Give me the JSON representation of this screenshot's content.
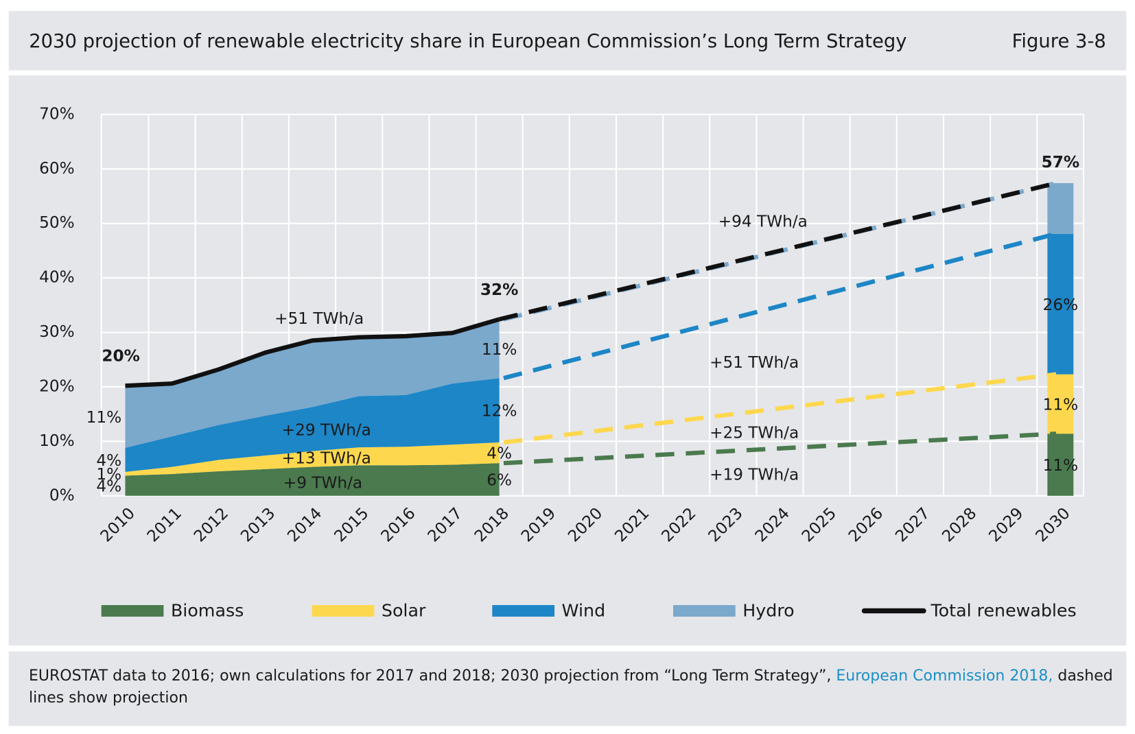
{
  "header": {
    "title": "2030 projection of renewable electricity share in European Commission’s Long Term Strategy",
    "figure": "Figure 3-8"
  },
  "chart_data": {
    "type": "area",
    "categories": [
      "2010",
      "2011",
      "2012",
      "2013",
      "2014",
      "2015",
      "2016",
      "2017",
      "2018",
      "2019",
      "2020",
      "2021",
      "2022",
      "2023",
      "2024",
      "2025",
      "2026",
      "2027",
      "2028",
      "2029",
      "2030"
    ],
    "ylim": [
      0,
      70
    ],
    "yticks": [
      {
        "value": 0,
        "label": "0%"
      },
      {
        "value": 10,
        "label": "10%"
      },
      {
        "value": 20,
        "label": "20%"
      },
      {
        "value": 30,
        "label": "30%"
      },
      {
        "value": 40,
        "label": "40%"
      },
      {
        "value": 50,
        "label": "50%"
      },
      {
        "value": 60,
        "label": "60%"
      },
      {
        "value": 70,
        "label": "70%"
      }
    ],
    "grid": true,
    "series": [
      {
        "name": "Biomass",
        "color": "#4a7a4e",
        "values": [
          3.7,
          4.0,
          4.5,
          4.9,
          5.3,
          5.6,
          5.6,
          5.7,
          6.0,
          null,
          null,
          null,
          null,
          null,
          null,
          null,
          null,
          null,
          null,
          null,
          11.4
        ],
        "value_labels": [
          "4%",
          null,
          null,
          null,
          null,
          null,
          null,
          null,
          "6%",
          null,
          null,
          null,
          null,
          null,
          null,
          null,
          null,
          null,
          null,
          null,
          "11%"
        ]
      },
      {
        "name": "Solar",
        "color": "#fdd84e",
        "values": [
          0.7,
          1.3,
          2.1,
          2.5,
          2.9,
          3.3,
          3.4,
          3.7,
          3.8,
          null,
          null,
          null,
          null,
          null,
          null,
          null,
          null,
          null,
          null,
          null,
          10.9
        ],
        "value_labels": [
          "1%",
          null,
          null,
          null,
          null,
          null,
          null,
          null,
          "4%",
          null,
          null,
          null,
          null,
          null,
          null,
          null,
          null,
          null,
          null,
          null,
          "11%"
        ]
      },
      {
        "name": "Wind",
        "color": "#1d86c6",
        "values": [
          4.4,
          5.6,
          6.4,
          7.3,
          8.1,
          9.4,
          9.5,
          11.2,
          11.8,
          null,
          null,
          null,
          null,
          null,
          null,
          null,
          null,
          null,
          null,
          null,
          25.8
        ],
        "value_labels": [
          "4%",
          null,
          null,
          null,
          null,
          null,
          null,
          null,
          "12%",
          null,
          null,
          null,
          null,
          null,
          null,
          null,
          null,
          null,
          null,
          null,
          "26%"
        ]
      },
      {
        "name": "Hydro",
        "color": "#7aa9cc",
        "values": [
          11.4,
          9.7,
          10.2,
          11.6,
          12.2,
          10.8,
          10.8,
          9.3,
          10.8,
          null,
          null,
          null,
          null,
          null,
          null,
          null,
          null,
          null,
          null,
          null,
          9.3
        ],
        "value_labels": [
          "11%",
          null,
          null,
          null,
          null,
          null,
          null,
          null,
          "11%",
          null,
          null,
          null,
          null,
          null,
          null,
          null,
          null,
          null,
          null,
          null,
          null
        ]
      },
      {
        "name": "Total renewables",
        "type": "line",
        "color": "#111111",
        "values": [
          20.2,
          20.6,
          23.2,
          26.3,
          28.5,
          29.1,
          29.3,
          29.9,
          32.4,
          null,
          null,
          null,
          null,
          null,
          null,
          null,
          null,
          null,
          null,
          null,
          57.4
        ],
        "value_labels": [
          "20%",
          null,
          null,
          null,
          null,
          null,
          null,
          null,
          "32%",
          null,
          null,
          null,
          null,
          null,
          null,
          null,
          null,
          null,
          null,
          null,
          "57%"
        ]
      }
    ],
    "annotations": [
      "+51 TWh/a",
      "+29 TWh/a",
      "+13 TWh/a",
      "+9 TWh/a",
      "+94 TWh/a",
      "+51 TWh/a",
      "+25 TWh/a",
      "+19 TWh/a"
    ]
  },
  "note": {
    "text": "EUROSTAT data to 2016; own calculations for 2017 and 2018; 2030 projection from “Long Term Strategy”, ",
    "link": "European Commission 2018,",
    "text_after": " dashed lines show projection"
  }
}
